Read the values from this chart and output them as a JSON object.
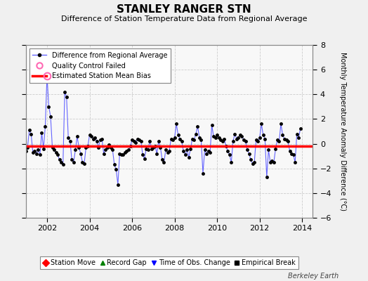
{
  "title": "STANLEY RANGER STN",
  "subtitle": "Difference of Station Temperature Data from Regional Average",
  "ylabel_right": "Monthly Temperature Anomaly Difference (°C)",
  "mean_bias": -0.18,
  "xlim": [
    2001.0,
    2014.5
  ],
  "ylim": [
    -6,
    8
  ],
  "yticks": [
    -6,
    -4,
    -2,
    0,
    2,
    4,
    6,
    8
  ],
  "xticks": [
    2002,
    2004,
    2006,
    2008,
    2010,
    2012,
    2014
  ],
  "bg_color": "#f0f0f0",
  "plot_bg_color": "#f8f8f8",
  "line_color": "#6666ff",
  "bias_color": "#ff0000",
  "marker_color": "#000000",
  "qc_color": "#ff69b4",
  "footer": "Berkeley Earth",
  "time_series": [
    [
      2001.0,
      -0.6
    ],
    [
      2001.083,
      -0.3
    ],
    [
      2001.167,
      1.1
    ],
    [
      2001.25,
      0.8
    ],
    [
      2001.333,
      -0.7
    ],
    [
      2001.417,
      -0.6
    ],
    [
      2001.5,
      -0.8
    ],
    [
      2001.583,
      -0.5
    ],
    [
      2001.667,
      -0.9
    ],
    [
      2001.75,
      0.9
    ],
    [
      2001.833,
      -0.4
    ],
    [
      2001.917,
      1.4
    ],
    [
      2002.0,
      5.5
    ],
    [
      2002.083,
      3.0
    ],
    [
      2002.167,
      2.2
    ],
    [
      2002.25,
      -0.3
    ],
    [
      2002.333,
      -0.5
    ],
    [
      2002.417,
      -0.7
    ],
    [
      2002.5,
      -0.9
    ],
    [
      2002.583,
      -1.3
    ],
    [
      2002.667,
      -1.5
    ],
    [
      2002.75,
      -1.7
    ],
    [
      2002.833,
      4.2
    ],
    [
      2002.917,
      3.8
    ],
    [
      2003.0,
      0.5
    ],
    [
      2003.083,
      0.2
    ],
    [
      2003.167,
      -1.3
    ],
    [
      2003.25,
      -1.5
    ],
    [
      2003.333,
      -0.5
    ],
    [
      2003.417,
      0.6
    ],
    [
      2003.5,
      -0.3
    ],
    [
      2003.583,
      -0.8
    ],
    [
      2003.667,
      -1.5
    ],
    [
      2003.75,
      -1.6
    ],
    [
      2003.833,
      -0.3
    ],
    [
      2003.917,
      -0.2
    ],
    [
      2004.0,
      0.7
    ],
    [
      2004.083,
      0.6
    ],
    [
      2004.167,
      0.4
    ],
    [
      2004.25,
      0.5
    ],
    [
      2004.333,
      0.2
    ],
    [
      2004.417,
      -0.3
    ],
    [
      2004.5,
      0.3
    ],
    [
      2004.583,
      0.4
    ],
    [
      2004.667,
      -0.8
    ],
    [
      2004.75,
      -0.5
    ],
    [
      2004.833,
      -0.3
    ],
    [
      2004.917,
      -0.1
    ],
    [
      2005.0,
      -0.3
    ],
    [
      2005.083,
      -0.5
    ],
    [
      2005.167,
      -1.7
    ],
    [
      2005.25,
      -2.1
    ],
    [
      2005.333,
      -3.3
    ],
    [
      2005.417,
      -0.8
    ],
    [
      2005.5,
      -0.9
    ],
    [
      2005.583,
      -0.9
    ],
    [
      2005.667,
      -0.7
    ],
    [
      2005.75,
      -0.6
    ],
    [
      2005.833,
      -0.5
    ],
    [
      2005.917,
      -0.2
    ],
    [
      2006.0,
      0.3
    ],
    [
      2006.083,
      0.2
    ],
    [
      2006.167,
      0.1
    ],
    [
      2006.25,
      0.4
    ],
    [
      2006.333,
      0.3
    ],
    [
      2006.417,
      0.2
    ],
    [
      2006.5,
      -0.9
    ],
    [
      2006.583,
      -1.2
    ],
    [
      2006.667,
      -0.4
    ],
    [
      2006.75,
      -0.5
    ],
    [
      2006.833,
      0.2
    ],
    [
      2006.917,
      -0.4
    ],
    [
      2007.0,
      -0.3
    ],
    [
      2007.083,
      -0.2
    ],
    [
      2007.167,
      -0.8
    ],
    [
      2007.25,
      0.2
    ],
    [
      2007.333,
      -0.3
    ],
    [
      2007.417,
      -1.3
    ],
    [
      2007.5,
      -1.5
    ],
    [
      2007.583,
      -0.5
    ],
    [
      2007.667,
      -0.7
    ],
    [
      2007.75,
      -0.6
    ],
    [
      2007.833,
      0.4
    ],
    [
      2007.917,
      0.3
    ],
    [
      2008.0,
      0.5
    ],
    [
      2008.083,
      1.6
    ],
    [
      2008.167,
      0.7
    ],
    [
      2008.25,
      0.4
    ],
    [
      2008.333,
      0.2
    ],
    [
      2008.417,
      -0.6
    ],
    [
      2008.5,
      -0.9
    ],
    [
      2008.583,
      -0.5
    ],
    [
      2008.667,
      -1.1
    ],
    [
      2008.75,
      -0.4
    ],
    [
      2008.833,
      0.4
    ],
    [
      2008.917,
      0.3
    ],
    [
      2009.0,
      0.8
    ],
    [
      2009.083,
      1.4
    ],
    [
      2009.167,
      0.5
    ],
    [
      2009.25,
      0.3
    ],
    [
      2009.333,
      -2.4
    ],
    [
      2009.417,
      -0.5
    ],
    [
      2009.5,
      -0.8
    ],
    [
      2009.583,
      -0.6
    ],
    [
      2009.667,
      -0.7
    ],
    [
      2009.75,
      1.5
    ],
    [
      2009.833,
      0.6
    ],
    [
      2009.917,
      0.5
    ],
    [
      2010.0,
      0.7
    ],
    [
      2010.083,
      0.5
    ],
    [
      2010.167,
      0.3
    ],
    [
      2010.25,
      0.2
    ],
    [
      2010.333,
      0.4
    ],
    [
      2010.417,
      -0.2
    ],
    [
      2010.5,
      -0.6
    ],
    [
      2010.583,
      -0.9
    ],
    [
      2010.667,
      -1.5
    ],
    [
      2010.75,
      0.2
    ],
    [
      2010.833,
      0.8
    ],
    [
      2010.917,
      0.4
    ],
    [
      2011.0,
      0.5
    ],
    [
      2011.083,
      0.7
    ],
    [
      2011.167,
      0.6
    ],
    [
      2011.25,
      0.3
    ],
    [
      2011.333,
      0.2
    ],
    [
      2011.417,
      -0.5
    ],
    [
      2011.5,
      -0.8
    ],
    [
      2011.583,
      -1.3
    ],
    [
      2011.667,
      -1.6
    ],
    [
      2011.75,
      -1.5
    ],
    [
      2011.833,
      0.3
    ],
    [
      2011.917,
      0.2
    ],
    [
      2012.0,
      0.5
    ],
    [
      2012.083,
      1.6
    ],
    [
      2012.167,
      0.7
    ],
    [
      2012.25,
      0.4
    ],
    [
      2012.333,
      -2.7
    ],
    [
      2012.417,
      -0.5
    ],
    [
      2012.5,
      -1.5
    ],
    [
      2012.583,
      -1.4
    ],
    [
      2012.667,
      -1.5
    ],
    [
      2012.75,
      -0.4
    ],
    [
      2012.833,
      0.3
    ],
    [
      2012.917,
      0.2
    ],
    [
      2013.0,
      1.6
    ],
    [
      2013.083,
      0.7
    ],
    [
      2013.167,
      0.4
    ],
    [
      2013.25,
      0.3
    ],
    [
      2013.333,
      0.2
    ],
    [
      2013.417,
      -0.6
    ],
    [
      2013.5,
      -0.8
    ],
    [
      2013.583,
      -0.9
    ],
    [
      2013.667,
      -1.5
    ],
    [
      2013.75,
      0.8
    ],
    [
      2013.833,
      0.5
    ],
    [
      2013.917,
      1.2
    ]
  ],
  "qc_points": [
    [
      2002.0,
      5.5
    ]
  ],
  "legend_line_label": "Difference from Regional Average",
  "legend_qc_label": "Quality Control Failed",
  "legend_bias_label": "Estimated Station Mean Bias",
  "legend_bottom": [
    {
      "label": "Station Move",
      "color": "#ff0000",
      "marker": "D"
    },
    {
      "label": "Record Gap",
      "color": "#008000",
      "marker": "^"
    },
    {
      "label": "Time of Obs. Change",
      "color": "#0000ff",
      "marker": "v"
    },
    {
      "label": "Empirical Break",
      "color": "#000000",
      "marker": "s"
    }
  ]
}
